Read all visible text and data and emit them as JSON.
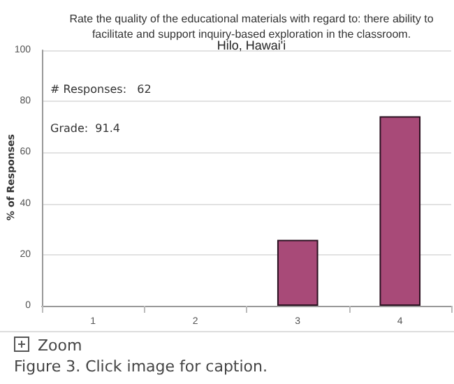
{
  "chart_data": {
    "type": "bar",
    "title": "Rate the quality of the educational materials with regard to: there ability to\nfacilitate and support inquiry-based exploration in the classroom.",
    "subtitle": "Hilo, Hawai'i",
    "ylabel": "% of Responses",
    "categories": [
      "1",
      "2",
      "3",
      "4"
    ],
    "values": [
      0,
      0,
      25.8,
      74.2
    ],
    "color": "#a84a78",
    "ylim": [
      0,
      100
    ],
    "yticks": [
      0,
      20,
      40,
      60,
      80,
      100
    ],
    "grid": "y",
    "annotations": [
      "# Responses:   62",
      "Grade:  91.4",
      "Zoom",
      "Figure 3.  Click image for caption."
    ]
  }
}
